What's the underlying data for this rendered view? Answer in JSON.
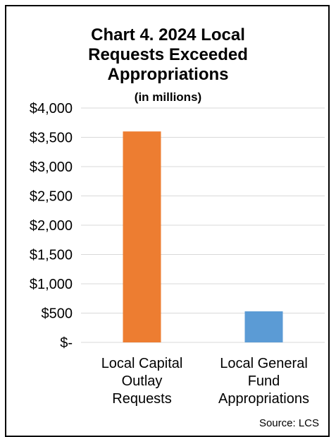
{
  "chart_data": {
    "type": "bar",
    "title_lines": [
      "Chart 4. 2024 Local",
      "Requests Exceeded",
      "Appropriations"
    ],
    "subtitle": "(in millions)",
    "categories": [
      [
        "Local Capital",
        "Outlay",
        "Requests"
      ],
      [
        "Local General",
        "Fund",
        "Appropriations"
      ]
    ],
    "values": [
      3600,
      530
    ],
    "colors": [
      "#ED7D31",
      "#5B9BD5"
    ],
    "ylim": [
      0,
      4000
    ],
    "yticks": [
      0,
      500,
      1000,
      1500,
      2000,
      2500,
      3000,
      3500,
      4000
    ],
    "ytick_labels": [
      "$-",
      "$500",
      "$1,000",
      "$1,500",
      "$2,000",
      "$2,500",
      "$3,000",
      "$3,500",
      "$4,000"
    ],
    "grid": true,
    "source": "Source: LCS"
  }
}
